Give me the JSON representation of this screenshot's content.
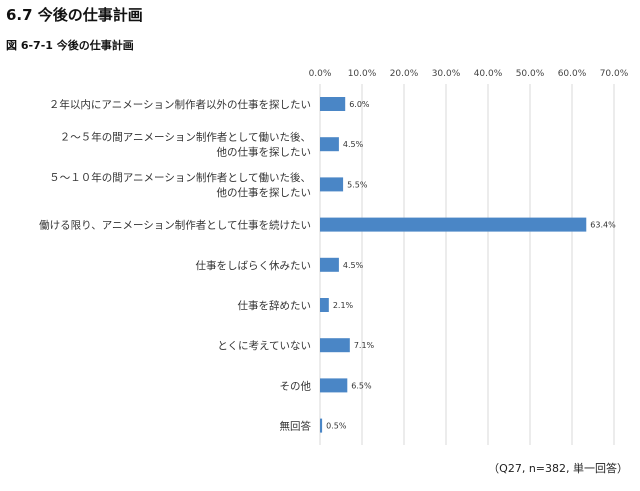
{
  "header": {
    "section_title": "6.7  今後の仕事計画",
    "figure_label": "図 6-7-1  今後の仕事計画"
  },
  "footnote": "（Q27, n=382, 単一回答）",
  "chart_data": {
    "type": "bar",
    "orientation": "horizontal",
    "title": "",
    "xlabel": "",
    "ylabel": "",
    "xlim": [
      0,
      70
    ],
    "tick_values": [
      0,
      10,
      20,
      30,
      40,
      50,
      60,
      70
    ],
    "tick_labels": [
      "0.0%",
      "10.0%",
      "20.0%",
      "30.0%",
      "40.0%",
      "50.0%",
      "60.0%",
      "70.0%"
    ],
    "tick_position": "top",
    "grid": true,
    "legend": false,
    "bar_color": "#4a86c6",
    "categories": [
      [
        "２年以内にアニメーション制作者以外の仕事を探したい"
      ],
      [
        "２～５年の間アニメーション制作者として働いた後、",
        "他の仕事を探したい"
      ],
      [
        "５～１０年の間アニメーション制作者として働いた後、",
        "他の仕事を探したい"
      ],
      [
        "働ける限り、アニメーション制作者として仕事を続けたい"
      ],
      [
        "仕事をしばらく休みたい"
      ],
      [
        "仕事を辞めたい"
      ],
      [
        "とくに考えていない"
      ],
      [
        "その他"
      ],
      [
        "無回答"
      ]
    ],
    "values": [
      6.0,
      4.5,
      5.5,
      63.4,
      4.5,
      2.1,
      7.1,
      6.5,
      0.5
    ],
    "data_labels": [
      "6.0%",
      "4.5%",
      "5.5%",
      "63.4%",
      "4.5%",
      "2.1%",
      "7.1%",
      "6.5%",
      "0.5%"
    ]
  }
}
